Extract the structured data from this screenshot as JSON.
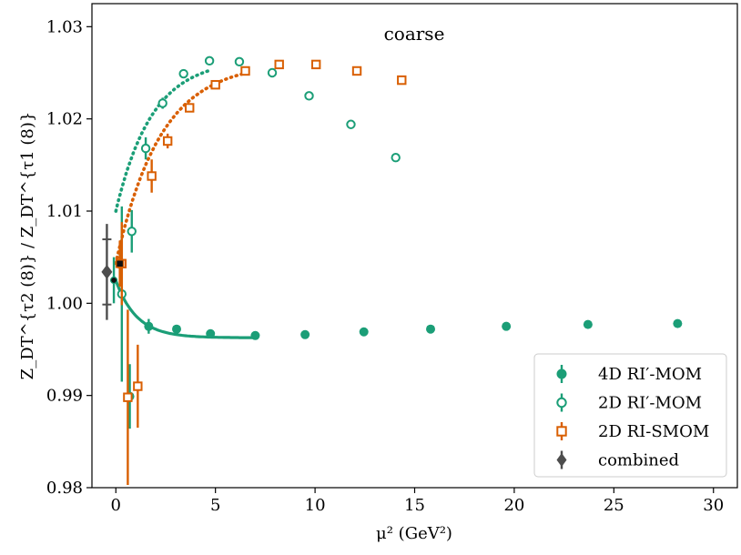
{
  "chart_data": {
    "type": "scatter",
    "title": "coarse",
    "xlabel": "μ² (GeV²)",
    "ylabel": "Z_DT^{τ2 (8)} / Z_DT^{τ1 (8)}",
    "xlim": [
      -1.2,
      31.2
    ],
    "ylim": [
      0.98,
      1.0325
    ],
    "xticks": [
      0,
      5,
      10,
      15,
      20,
      25,
      30
    ],
    "yticks": [
      0.98,
      0.99,
      1.0,
      1.01,
      1.02,
      1.03
    ],
    "xtick_labels": [
      "0",
      "5",
      "10",
      "15",
      "20",
      "25",
      "30"
    ],
    "ytick_labels": [
      "0.98",
      "0.99",
      "1.00",
      "1.01",
      "1.02",
      "1.03"
    ],
    "grid": false,
    "legend_position": "bottom-right",
    "colors": {
      "ri_mom": "#1b9e77",
      "ri_smom": "#d95f02",
      "combined": "#4d4d4d"
    },
    "series": [
      {
        "name": "4D RI′-MOM",
        "key": "ri4d",
        "marker": "filled-circle",
        "color": "#1b9e77",
        "points": [
          {
            "x": 0.7,
            "y": 0.9899,
            "err": 0.0035
          },
          {
            "x": 1.65,
            "y": 0.9975,
            "err": 0.0008
          },
          {
            "x": 3.05,
            "y": 0.9972,
            "err": 0.0003
          },
          {
            "x": 4.75,
            "y": 0.9967,
            "err": 0.0002
          },
          {
            "x": 7.0,
            "y": 0.9965,
            "err": 0.0002
          },
          {
            "x": 9.5,
            "y": 0.9966,
            "err": 0.0002
          },
          {
            "x": 12.45,
            "y": 0.9969,
            "err": 0.0002
          },
          {
            "x": 15.8,
            "y": 0.9972,
            "err": 0.0002
          },
          {
            "x": 19.6,
            "y": 0.9975,
            "err": 0.0002
          },
          {
            "x": 23.7,
            "y": 0.9977,
            "err": 0.0002
          },
          {
            "x": 28.2,
            "y": 0.9978,
            "err": 0.0002
          }
        ]
      },
      {
        "name": "2D RI′-MOM",
        "key": "ri2d",
        "marker": "open-circle",
        "color": "#1b9e77",
        "points": [
          {
            "x": 0.3,
            "y": 1.001,
            "err": 0.0095
          },
          {
            "x": 0.8,
            "y": 1.0078,
            "err": 0.0023
          },
          {
            "x": 1.5,
            "y": 1.0168,
            "err": 0.0012
          },
          {
            "x": 2.35,
            "y": 1.0217,
            "err": 0.0006
          },
          {
            "x": 3.4,
            "y": 1.0249,
            "err": 0.0003
          },
          {
            "x": 4.7,
            "y": 1.0263,
            "err": 0.0002
          },
          {
            "x": 6.2,
            "y": 1.0262,
            "err": 0.0002
          },
          {
            "x": 7.85,
            "y": 1.025,
            "err": 0.0002
          },
          {
            "x": 9.7,
            "y": 1.0225,
            "err": 0.0002
          },
          {
            "x": 11.8,
            "y": 1.0194,
            "err": 0.0002
          },
          {
            "x": 14.05,
            "y": 1.0158,
            "err": 0.0002
          }
        ]
      },
      {
        "name": "2D RI-SMOM",
        "key": "smom",
        "marker": "open-square",
        "color": "#d95f02",
        "points": [
          {
            "x": 0.3,
            "y": 1.0043,
            "err": 0.0045
          },
          {
            "x": 0.6,
            "y": 0.9898,
            "err": 0.0095
          },
          {
            "x": 1.1,
            "y": 0.991,
            "err": 0.0045
          },
          {
            "x": 1.8,
            "y": 1.0138,
            "err": 0.0018
          },
          {
            "x": 2.6,
            "y": 1.0176,
            "err": 0.0008
          },
          {
            "x": 3.7,
            "y": 1.0212,
            "err": 0.0004
          },
          {
            "x": 5.0,
            "y": 1.0237,
            "err": 0.0003
          },
          {
            "x": 6.5,
            "y": 1.0252,
            "err": 0.0002
          },
          {
            "x": 8.2,
            "y": 1.0259,
            "err": 0.0002
          },
          {
            "x": 10.05,
            "y": 1.0259,
            "err": 0.0002
          },
          {
            "x": 12.1,
            "y": 1.0252,
            "err": 0.0002
          },
          {
            "x": 14.35,
            "y": 1.0242,
            "err": 0.0002
          }
        ]
      },
      {
        "name": "combined",
        "key": "combined",
        "marker": "filled-diamond",
        "color": "#4d4d4d",
        "points": [
          {
            "x": -0.45,
            "y": 1.0034,
            "err": 0.0052
          }
        ]
      }
    ],
    "extrapolated_points": [
      {
        "key": "ri4d",
        "x": -0.1,
        "y": 1.0025,
        "err": 0.0025
      },
      {
        "key": "smom",
        "x": 0.2,
        "y": 1.0043,
        "err": 0.0025
      }
    ],
    "fit_curves": [
      {
        "key": "ri4d",
        "style": "solid",
        "a": 0.99626,
        "b": 0.0062,
        "c": 0.95,
        "x_from": 0,
        "x_to": 7
      },
      {
        "key": "ri2d",
        "style": "dotted",
        "a": 1.02649,
        "b": -0.0165,
        "c": 0.55,
        "x_from": 0,
        "x_to": 4.7
      },
      {
        "key": "smom",
        "style": "dotted",
        "a": 1.02612,
        "b": -0.0218,
        "c": 0.45,
        "x_from": 0,
        "x_to": 6.5
      }
    ]
  }
}
